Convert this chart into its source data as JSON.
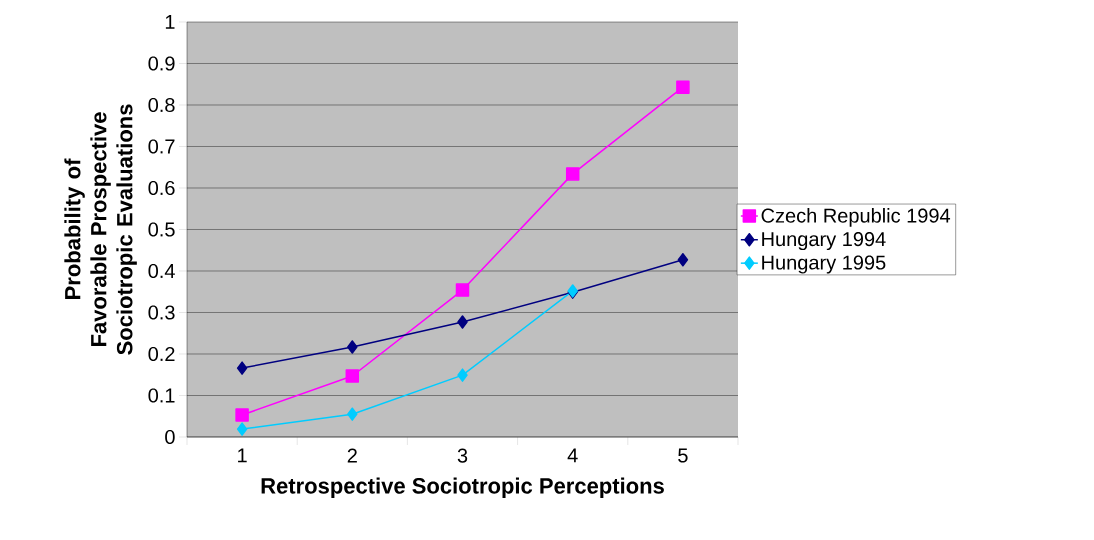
{
  "chart_data": {
    "type": "line",
    "xlabel": "Retrospective Sociotropic Perceptions",
    "ylabel": "Probability of Favorable Prospective Sociotropic Evaluations",
    "categories": [
      "1",
      "2",
      "3",
      "4",
      "5"
    ],
    "series": [
      {
        "name": "Czech Republic 1994",
        "color": "#ff00ff",
        "marker": "square",
        "values": [
          0.053,
          0.147,
          0.354,
          0.634,
          0.843
        ]
      },
      {
        "name": "Hungary 1994",
        "color": "#000080",
        "marker": "diamond",
        "values": [
          0.166,
          0.217,
          0.277,
          0.349,
          0.427
        ]
      },
      {
        "name": "Hungary 1995",
        "color": "#00ccff",
        "marker": "diamond",
        "values": [
          0.019,
          0.055,
          0.149,
          0.352,
          null
        ]
      }
    ],
    "ylim": [
      0,
      1
    ],
    "yticks": [
      0,
      0.1,
      0.2,
      0.3,
      0.4,
      0.5,
      0.6,
      0.7,
      0.8,
      0.9,
      1
    ],
    "grid": "y",
    "legend": "right",
    "line_style": "solid"
  }
}
